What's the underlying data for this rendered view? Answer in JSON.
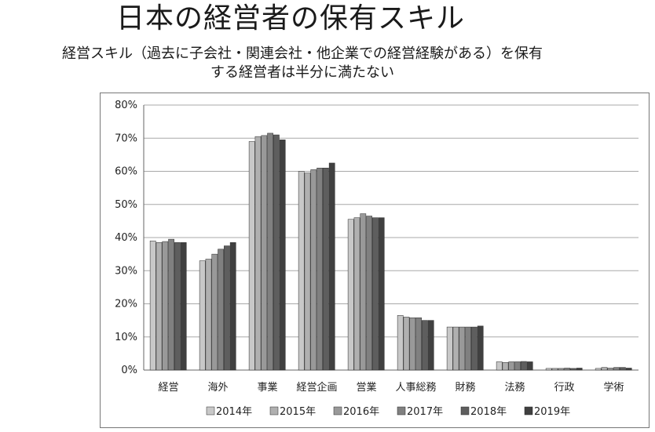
{
  "header": {
    "title": "日本の経営者の保有スキル",
    "subtitle_line1": "経営スキル（過去に子会社・関連会社・他企業での経営経験がある）を保有",
    "subtitle_line2": "する経営者は半分に満たない"
  },
  "chart_data": {
    "type": "bar",
    "categories": [
      "経営",
      "海外",
      "事業",
      "経営企画",
      "営業",
      "人事総務",
      "財務",
      "法務",
      "行政",
      "学術"
    ],
    "series": [
      {
        "name": "2014年",
        "color": "#c8c8c8",
        "values": [
          39.0,
          33.0,
          69.0,
          60.0,
          45.5,
          16.5,
          13.0,
          2.5,
          0.5,
          0.5
        ]
      },
      {
        "name": "2015年",
        "color": "#b0b0b0",
        "values": [
          38.5,
          33.5,
          70.5,
          59.5,
          46.0,
          16.0,
          13.0,
          2.3,
          0.5,
          0.8
        ]
      },
      {
        "name": "2016年",
        "color": "#999999",
        "values": [
          38.8,
          35.0,
          70.8,
          60.5,
          47.2,
          15.8,
          13.0,
          2.5,
          0.5,
          0.6
        ]
      },
      {
        "name": "2017年",
        "color": "#808080",
        "values": [
          39.5,
          36.5,
          71.5,
          61.0,
          46.5,
          15.8,
          13.0,
          2.5,
          0.6,
          0.8
        ]
      },
      {
        "name": "2018年",
        "color": "#5e5e5e",
        "values": [
          38.5,
          37.5,
          71.0,
          61.0,
          46.0,
          15.0,
          13.0,
          2.6,
          0.5,
          0.8
        ]
      },
      {
        "name": "2019年",
        "color": "#404040",
        "values": [
          38.5,
          38.5,
          69.5,
          62.5,
          46.0,
          15.0,
          13.3,
          2.5,
          0.6,
          0.6
        ]
      }
    ],
    "ylim": [
      0,
      80
    ],
    "yticks": [
      "0%",
      "10%",
      "20%",
      "30%",
      "40%",
      "50%",
      "60%",
      "70%",
      "80%"
    ],
    "grid": true,
    "legend_position": "bottom"
  }
}
